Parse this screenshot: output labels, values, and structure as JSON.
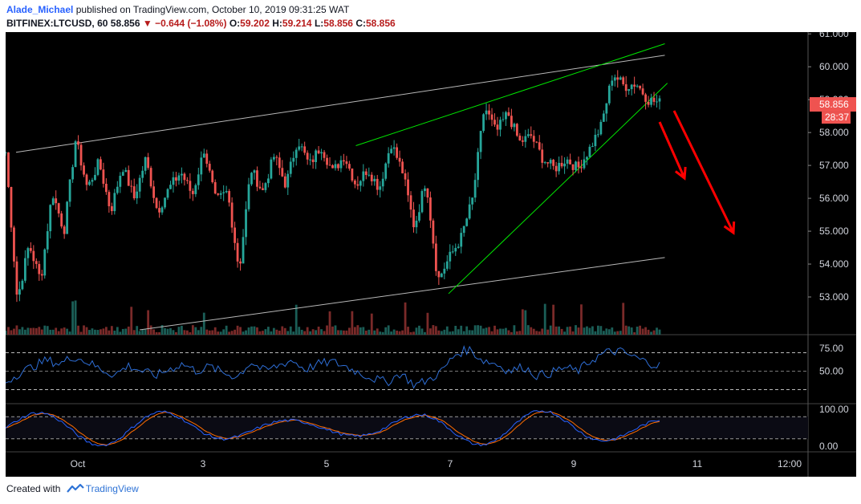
{
  "header": {
    "author": "Alade_Michael",
    "published_text": "published on TradingView.com, October 10, 2019 09:31:25 WAT",
    "symbol": "BITFINEX:LTCUSD, 60",
    "last": "58.856",
    "change": "−0.644 (−1.08%)",
    "o_label": "O:",
    "o": "59.202",
    "h_label": "H:",
    "h": "59.214",
    "l_label": "L:",
    "l": "58.856",
    "c_label": "C:",
    "c": "58.856"
  },
  "footer": {
    "created_with": "Created with",
    "brand": "TradingView"
  },
  "colors": {
    "up": "#26a69a",
    "down": "#ef5350",
    "trend_green": "#00e600",
    "channel": "#b8b8b8",
    "rsi": "#2e6ed6",
    "stoch_k": "#2962ff",
    "stoch_d": "#ff6d00",
    "arrow": "#ff0000",
    "price_tag": "#ef5350"
  },
  "chart_data": {
    "type": "candlestick",
    "price_axis": {
      "ticks": [
        "61.000",
        "60.000",
        "59.000",
        "58.000",
        "57.000",
        "56.000",
        "55.000",
        "54.000",
        "53.000"
      ],
      "range": [
        52.0,
        61.2
      ]
    },
    "time_axis": {
      "labels": [
        "Oct",
        "3",
        "5",
        "7",
        "9",
        "11",
        "12:00"
      ]
    },
    "last_price_tag": "58.856",
    "countdown_tag": "28:37",
    "ohlc_path": [
      57.4,
      52.9,
      54.6,
      53.5,
      56.2,
      55.0,
      57.8,
      56.3,
      57.1,
      55.6,
      57.0,
      56.0,
      57.2,
      55.6,
      56.3,
      56.8,
      56.1,
      57.5,
      55.9,
      56.2,
      53.8,
      56.9,
      56.2,
      57.3,
      56.4,
      57.8,
      57.0,
      57.6,
      56.8,
      57.3,
      56.4,
      56.9,
      56.3,
      57.7,
      56.8,
      55.1,
      56.6,
      53.5,
      54.2,
      54.8,
      56.0,
      58.8,
      58.0,
      58.6,
      57.7,
      57.9,
      57.2,
      56.9,
      57.2,
      56.9,
      57.5,
      58.2,
      59.8,
      59.4,
      59.5,
      59.0,
      58.9
    ],
    "trendlines": [
      {
        "name": "upper-channel",
        "from": [
          "2019-09-30",
          57.4
        ],
        "to": [
          "2019-10-10T12:00",
          60.35
        ]
      },
      {
        "name": "lower-channel",
        "from": [
          "2019-10-02",
          52.0
        ],
        "to": [
          "2019-10-10T12:00",
          54.2
        ]
      },
      {
        "name": "rising-wedge-top",
        "from": [
          "2019-10-05T12:00",
          57.6
        ],
        "to": [
          "2019-10-10T12:00",
          60.7
        ]
      },
      {
        "name": "rising-wedge-bottom",
        "from": [
          "2019-10-07",
          53.1
        ],
        "to": [
          "2019-10-10T13:00",
          59.5
        ]
      }
    ],
    "rsi": {
      "ticks": [
        "75.00",
        "50.00"
      ],
      "levels": [
        70,
        50,
        30
      ],
      "values": [
        38,
        48,
        55,
        62,
        58,
        66,
        60,
        52,
        46,
        56,
        50,
        45,
        52,
        58,
        50,
        55,
        48,
        44,
        60,
        50,
        56,
        62,
        52,
        58,
        60,
        55,
        48,
        42,
        38,
        48,
        35,
        40,
        50,
        68,
        74,
        62,
        58,
        50,
        55,
        45,
        48,
        54,
        50,
        62,
        70,
        72,
        66,
        60,
        56
      ]
    },
    "stochastic": {
      "ticks": [
        "100.00",
        "0.00"
      ],
      "levels": [
        80,
        20
      ]
    }
  }
}
